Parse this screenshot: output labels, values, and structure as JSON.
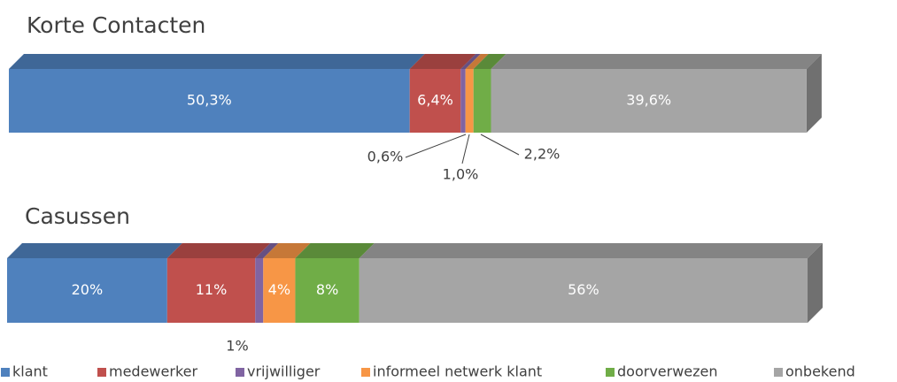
{
  "chart_data": {
    "type": "bar",
    "orientation": "horizontal",
    "stacked": true,
    "categories": [
      "Korte Contacten",
      "Casussen"
    ],
    "xlim": [
      0,
      100
    ],
    "series": [
      {
        "name": "klant",
        "color": "#4f81bd",
        "values": [
          50.3,
          20
        ],
        "value_labels": [
          "50,3%",
          "20%"
        ]
      },
      {
        "name": "medewerker",
        "color": "#c0504d",
        "values": [
          6.4,
          11
        ],
        "value_labels": [
          "6,4%",
          "11%"
        ]
      },
      {
        "name": "vrijwilliger",
        "color": "#8064a2",
        "values": [
          0.6,
          1
        ],
        "value_labels": [
          "0,6%",
          "1%"
        ]
      },
      {
        "name": "informeel netwerk klant",
        "color": "#f79646",
        "values": [
          1.0,
          4
        ],
        "value_labels": [
          "1,0%",
          "4%"
        ]
      },
      {
        "name": "doorverwezen",
        "color": "#70ad47",
        "values": [
          2.2,
          8
        ],
        "value_labels": [
          "2,2%",
          "8%"
        ]
      },
      {
        "name": "onbekend",
        "color": "#a5a5a5",
        "values": [
          39.6,
          56
        ],
        "value_labels": [
          "39,6%",
          "56%"
        ]
      }
    ],
    "legend": "bottom"
  }
}
